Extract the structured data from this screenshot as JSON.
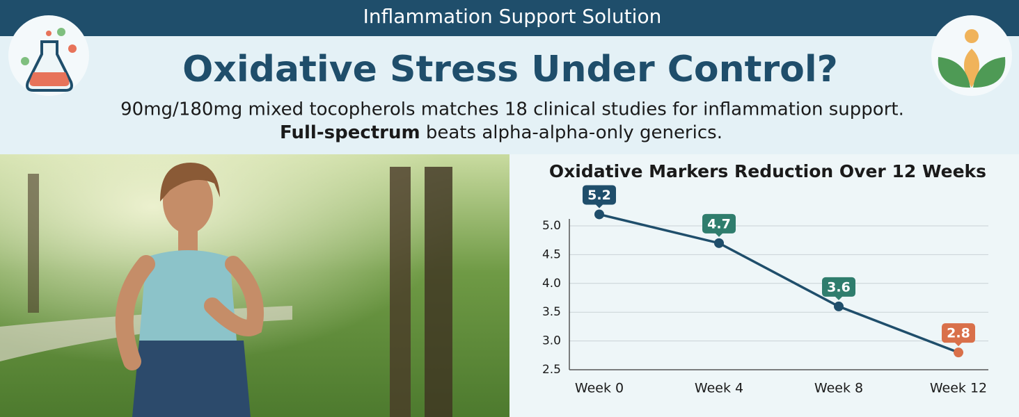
{
  "header": {
    "title": "Inflammation Support Solution"
  },
  "headline": "Oxidative Stress Under Control?",
  "subtext": {
    "line1": "90mg/180mg mixed tocopherols matches 18 clinical studies for inflammation support.",
    "line2_bold": "Full-spectrum",
    "line2_rest": "beats alpha-alpha-only generics."
  },
  "chart_data": {
    "type": "line",
    "title": "Oxidative Markers Reduction Over 12 Weeks",
    "categories": [
      "Week 0",
      "Week 4",
      "Week 8",
      "Week 12"
    ],
    "values": [
      5.2,
      4.7,
      3.6,
      2.8
    ],
    "color": "#1f4e6b",
    "point_colors": [
      "#1f4e6b",
      "#1f4e6b",
      "#1f4e6b",
      "#d9704a"
    ],
    "label_colors": [
      "#1f4e6b",
      "#2f7d6d",
      "#2f7d6d",
      "#d9704a"
    ],
    "ylim": [
      2.5,
      5.0
    ],
    "yticks": [
      2.5,
      {
        "value": 3,
        "label": "3.0"
      },
      3.5,
      {
        "value": 4,
        "label": "4.0"
      },
      4.5,
      {
        "value": 5,
        "label": "5.0"
      }
    ],
    "grid": true
  }
}
